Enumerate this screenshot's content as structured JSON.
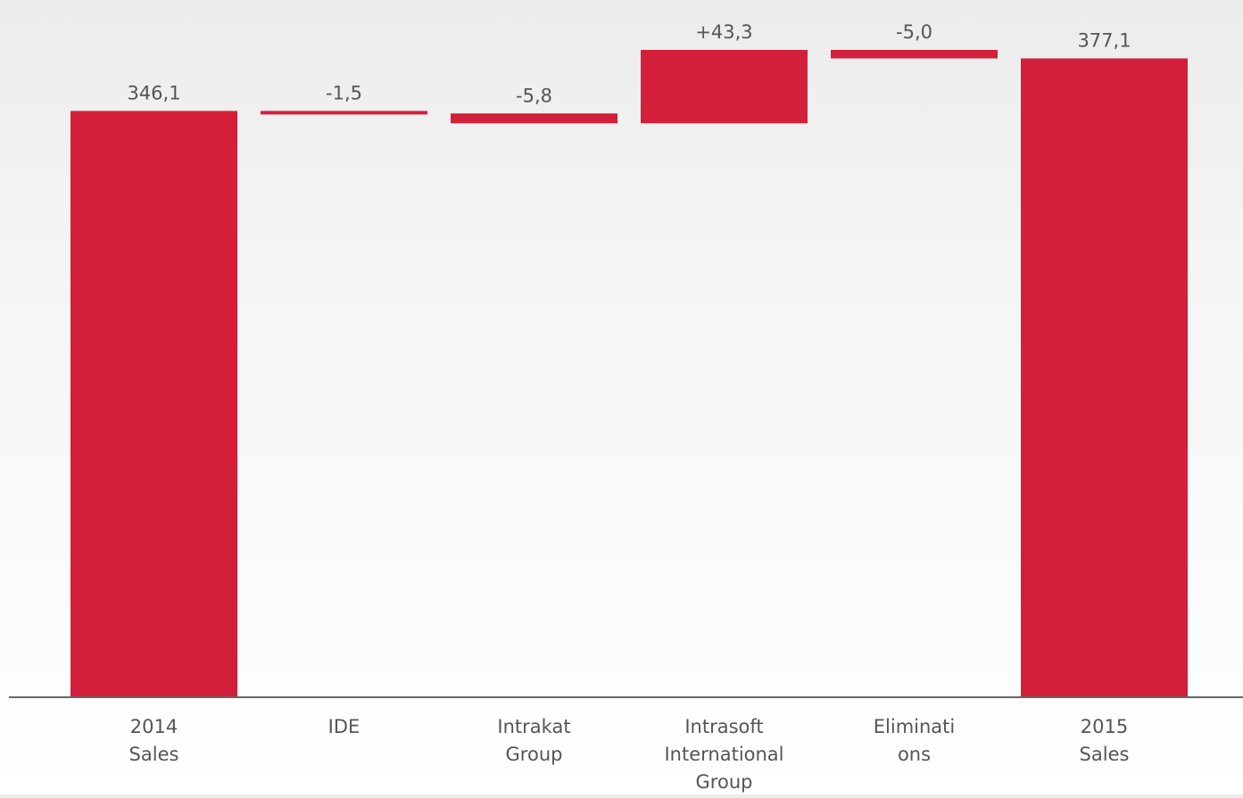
{
  "chart_data": {
    "type": "bar",
    "subtype": "waterfall",
    "categories": [
      [
        "2014",
        "Sales"
      ],
      [
        "IDE"
      ],
      [
        "Intrakat",
        "Group"
      ],
      [
        "Intrasoft",
        "International",
        "Group"
      ],
      [
        "Eliminati",
        "ons"
      ],
      [
        "2015",
        "Sales"
      ]
    ],
    "values": [
      346.1,
      -1.5,
      -5.8,
      43.3,
      -5.0,
      377.1
    ],
    "value_labels": [
      "346,1",
      "-1,5",
      "-5,8",
      "+43,3",
      "-5,0",
      "377,1"
    ],
    "kinds": [
      "total",
      "delta",
      "delta",
      "delta",
      "delta",
      "total"
    ],
    "ylim": [
      0,
      390
    ],
    "grid": false,
    "legend": false,
    "colors": {
      "bar": "#d31f3a",
      "axis": "#666666",
      "label_text": "#555555"
    }
  }
}
